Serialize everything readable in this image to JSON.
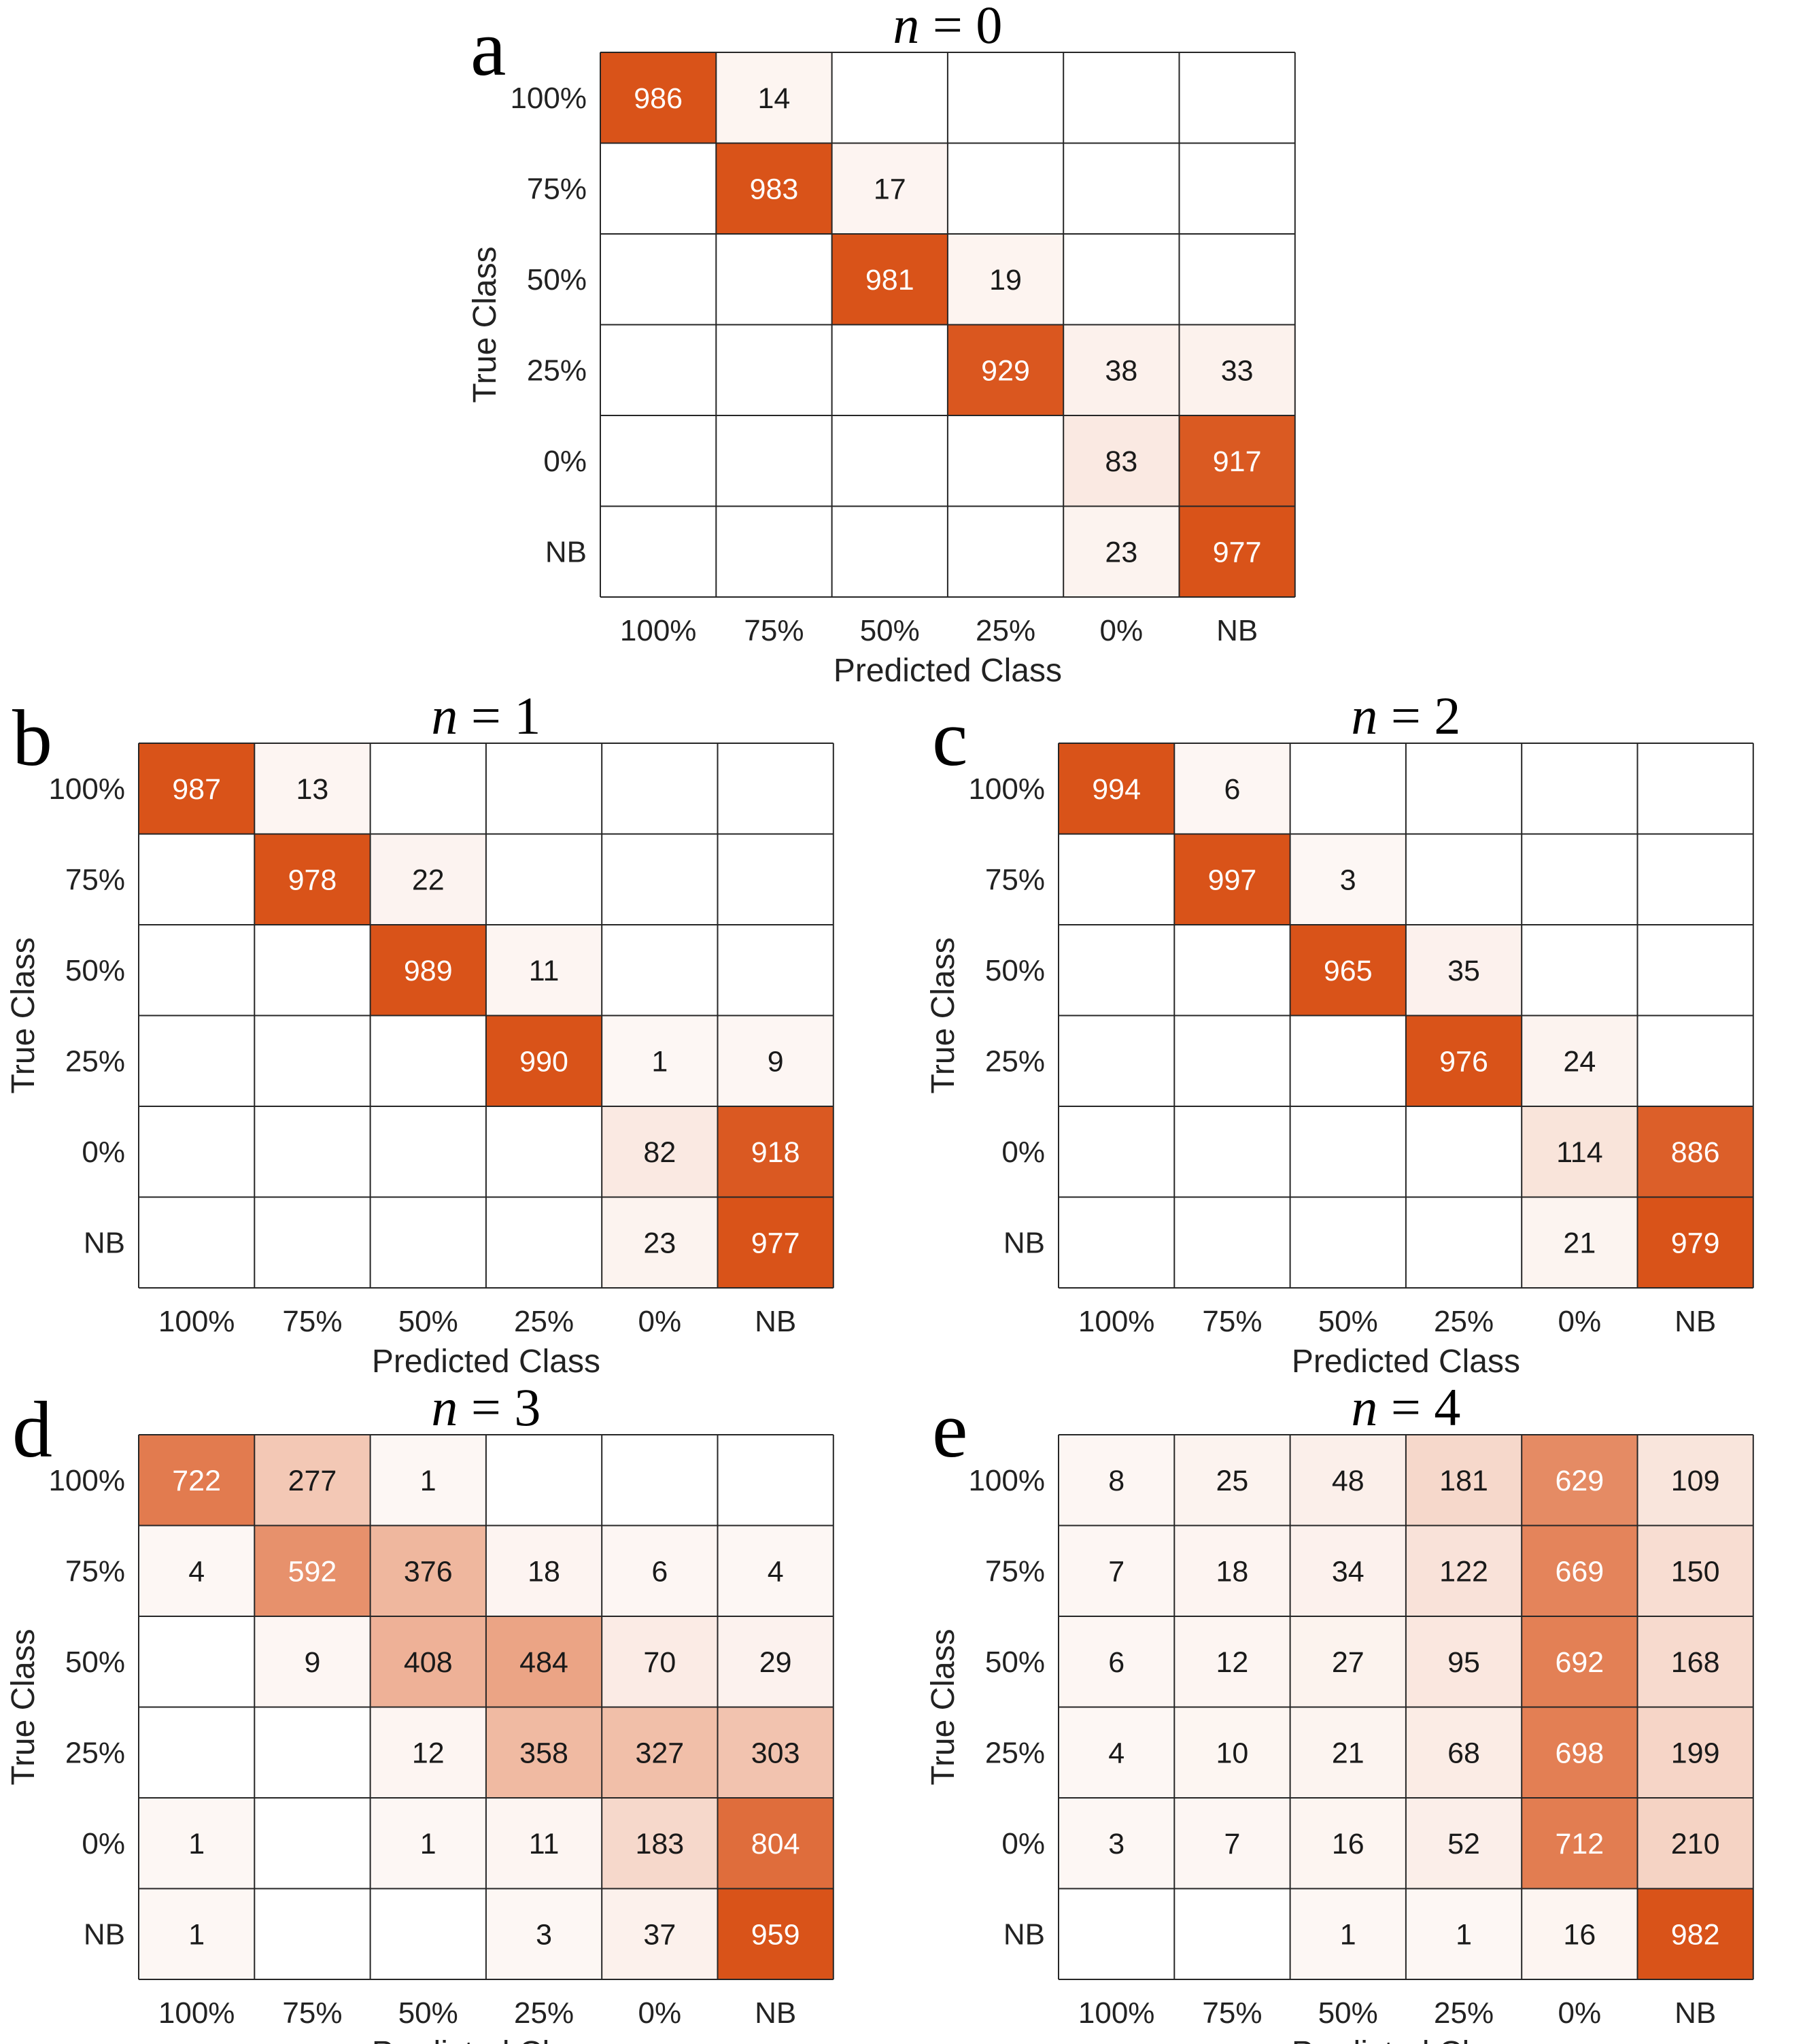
{
  "colors": {
    "low": "#ffffff",
    "high": "#d95319",
    "dark_text": "#1a1a1a",
    "light_text": "#ffffff"
  },
  "chart_data": [
    {
      "type": "heatmap",
      "panel": "a",
      "title_var": "n",
      "title_rest": " = 0",
      "xlabel": "Predicted Class",
      "ylabel": "True Class",
      "x_categories": [
        "100%",
        "75%",
        "50%",
        "25%",
        "0%",
        "NB"
      ],
      "y_categories": [
        "100%",
        "75%",
        "50%",
        "25%",
        "0%",
        "NB"
      ],
      "values": [
        [
          986,
          14,
          null,
          null,
          null,
          null
        ],
        [
          null,
          983,
          17,
          null,
          null,
          null
        ],
        [
          null,
          null,
          981,
          19,
          null,
          null
        ],
        [
          null,
          null,
          null,
          929,
          38,
          33
        ],
        [
          null,
          null,
          null,
          null,
          83,
          917
        ],
        [
          null,
          null,
          null,
          null,
          23,
          977
        ]
      ]
    },
    {
      "type": "heatmap",
      "panel": "b",
      "title_var": "n",
      "title_rest": " = 1",
      "xlabel": "Predicted Class",
      "ylabel": "True Class",
      "x_categories": [
        "100%",
        "75%",
        "50%",
        "25%",
        "0%",
        "NB"
      ],
      "y_categories": [
        "100%",
        "75%",
        "50%",
        "25%",
        "0%",
        "NB"
      ],
      "values": [
        [
          987,
          13,
          null,
          null,
          null,
          null
        ],
        [
          null,
          978,
          22,
          null,
          null,
          null
        ],
        [
          null,
          null,
          989,
          11,
          null,
          null
        ],
        [
          null,
          null,
          null,
          990,
          1,
          9
        ],
        [
          null,
          null,
          null,
          null,
          82,
          918
        ],
        [
          null,
          null,
          null,
          null,
          23,
          977
        ]
      ]
    },
    {
      "type": "heatmap",
      "panel": "c",
      "title_var": "n",
      "title_rest": " = 2",
      "xlabel": "Predicted Class",
      "ylabel": "True Class",
      "x_categories": [
        "100%",
        "75%",
        "50%",
        "25%",
        "0%",
        "NB"
      ],
      "y_categories": [
        "100%",
        "75%",
        "50%",
        "25%",
        "0%",
        "NB"
      ],
      "values": [
        [
          994,
          6,
          null,
          null,
          null,
          null
        ],
        [
          null,
          997,
          3,
          null,
          null,
          null
        ],
        [
          null,
          null,
          965,
          35,
          null,
          null
        ],
        [
          null,
          null,
          null,
          976,
          24,
          null
        ],
        [
          null,
          null,
          null,
          null,
          114,
          886
        ],
        [
          null,
          null,
          null,
          null,
          21,
          979
        ]
      ]
    },
    {
      "type": "heatmap",
      "panel": "d",
      "title_var": "n",
      "title_rest": " = 3",
      "xlabel": "Predicted Class",
      "ylabel": "True Class",
      "x_categories": [
        "100%",
        "75%",
        "50%",
        "25%",
        "0%",
        "NB"
      ],
      "y_categories": [
        "100%",
        "75%",
        "50%",
        "25%",
        "0%",
        "NB"
      ],
      "values": [
        [
          722,
          277,
          1,
          null,
          null,
          null
        ],
        [
          4,
          592,
          376,
          18,
          6,
          4
        ],
        [
          null,
          9,
          408,
          484,
          70,
          29
        ],
        [
          null,
          null,
          12,
          358,
          327,
          303
        ],
        [
          1,
          null,
          1,
          11,
          183,
          804
        ],
        [
          1,
          null,
          null,
          3,
          37,
          959
        ]
      ]
    },
    {
      "type": "heatmap",
      "panel": "e",
      "title_var": "n",
      "title_rest": " = 4",
      "xlabel": "Predicted Class",
      "ylabel": "True Class",
      "x_categories": [
        "100%",
        "75%",
        "50%",
        "25%",
        "0%",
        "NB"
      ],
      "y_categories": [
        "100%",
        "75%",
        "50%",
        "25%",
        "0%",
        "NB"
      ],
      "values": [
        [
          8,
          25,
          48,
          181,
          629,
          109
        ],
        [
          7,
          18,
          34,
          122,
          669,
          150
        ],
        [
          6,
          12,
          27,
          95,
          692,
          168
        ],
        [
          4,
          10,
          21,
          68,
          698,
          199
        ],
        [
          3,
          7,
          16,
          52,
          712,
          210
        ],
        [
          null,
          null,
          1,
          1,
          16,
          982
        ]
      ]
    }
  ]
}
